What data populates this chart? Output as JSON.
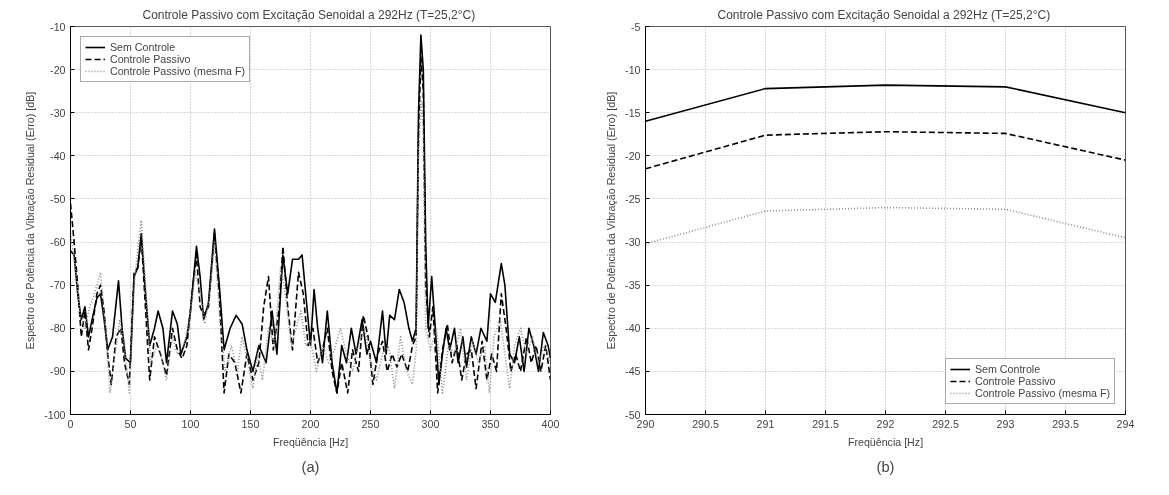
{
  "chart_data": [
    {
      "type": "line",
      "title": "Controle Passivo com Excitação Senoidal a 292Hz  (T=25,2°C)",
      "xlabel": "Freqüência [Hz]",
      "ylabel": "Espectro de Potência da Vibração Residual (Erro) [dB]",
      "xlim": [
        0,
        400
      ],
      "ylim": [
        -100,
        -10
      ],
      "xticks": [
        0,
        50,
        100,
        150,
        200,
        250,
        300,
        350,
        400
      ],
      "yticks": [
        -100,
        -90,
        -80,
        -70,
        -60,
        -50,
        -40,
        -30,
        -20,
        -10
      ],
      "grid": true,
      "legend": "top left",
      "annotations": [
        "(a)"
      ],
      "series": [
        {
          "name": "Sem Controle",
          "color": "#000000",
          "line_style": "solid",
          "x": [
            0,
            3,
            6,
            9,
            12,
            15,
            18,
            22,
            25,
            28,
            31,
            35,
            40,
            43,
            46,
            50,
            53,
            56,
            59,
            62,
            66,
            70,
            73,
            77,
            80,
            85,
            89,
            92,
            97,
            100,
            105,
            108,
            111,
            115,
            120,
            124,
            128,
            133,
            138,
            143,
            147,
            152,
            157,
            163,
            168,
            172,
            177,
            181,
            185,
            190,
            193,
            196,
            200,
            203,
            206,
            210,
            214,
            218,
            222,
            226,
            230,
            234,
            238,
            243,
            247,
            250,
            255,
            260,
            263,
            266,
            270,
            274,
            278,
            282,
            285,
            288,
            290,
            292,
            294,
            296,
            298,
            301,
            304,
            307,
            310,
            313,
            316,
            320,
            323,
            327,
            330,
            334,
            338,
            342,
            347,
            350,
            354,
            359,
            362,
            366,
            370,
            374,
            378,
            382,
            386,
            390,
            394,
            398,
            400
          ],
          "values": [
            -62,
            -63,
            -72,
            -78,
            -75,
            -82,
            -78,
            -73,
            -72,
            -78,
            -85,
            -82,
            -69,
            -80,
            -87,
            -88,
            -68,
            -66,
            -58,
            -70,
            -84,
            -80,
            -76,
            -80,
            -88,
            -76,
            -79,
            -86,
            -82,
            -76,
            -61,
            -68,
            -78,
            -74,
            -57,
            -70,
            -85,
            -80,
            -77,
            -79,
            -85,
            -90,
            -84,
            -88,
            -76,
            -86,
            -63,
            -72,
            -64,
            -64,
            -63,
            -72,
            -84,
            -71,
            -80,
            -88,
            -76,
            -88,
            -95,
            -84,
            -88,
            -80,
            -86,
            -78,
            -86,
            -83,
            -88,
            -76,
            -86,
            -77,
            -78,
            -71,
            -74,
            -80,
            -83,
            -80,
            -30,
            -12,
            -20,
            -60,
            -80,
            -68,
            -80,
            -93,
            -86,
            -80,
            -85,
            -80,
            -88,
            -82,
            -89,
            -82,
            -86,
            -80,
            -83,
            -72,
            -74,
            -65,
            -70,
            -86,
            -88,
            -82,
            -90,
            -80,
            -84,
            -90,
            -81,
            -84,
            -87
          ]
        },
        {
          "name": "Controle Passivo",
          "color": "#000000",
          "line_style": "dashed",
          "x": [
            0,
            3,
            6,
            9,
            12,
            15,
            18,
            22,
            25,
            28,
            31,
            34,
            38,
            42,
            45,
            49,
            53,
            56,
            59,
            62,
            66,
            70,
            75,
            80,
            85,
            89,
            93,
            97,
            102,
            105,
            108,
            111,
            115,
            120,
            124,
            128,
            132,
            137,
            142,
            147,
            152,
            157,
            161,
            165,
            169,
            174,
            177,
            181,
            185,
            190,
            194,
            198,
            202,
            206,
            210,
            214,
            218,
            222,
            226,
            231,
            235,
            240,
            244,
            248,
            252,
            256,
            260,
            264,
            268,
            272,
            276,
            281,
            285,
            288,
            290,
            292,
            294,
            296,
            299,
            302,
            306,
            310,
            314,
            318,
            322,
            326,
            330,
            334,
            338,
            343,
            347,
            351,
            355,
            359,
            363,
            367,
            371,
            375,
            380,
            384,
            388,
            392,
            396,
            400
          ],
          "values": [
            -51,
            -60,
            -70,
            -82,
            -76,
            -85,
            -80,
            -72,
            -70,
            -76,
            -86,
            -93,
            -82,
            -80,
            -88,
            -93,
            -67,
            -66,
            -59,
            -73,
            -92,
            -82,
            -86,
            -91,
            -80,
            -85,
            -87,
            -84,
            -70,
            -63,
            -75,
            -77,
            -75,
            -58,
            -72,
            -95,
            -86,
            -88,
            -95,
            -86,
            -92,
            -88,
            -75,
            -68,
            -85,
            -75,
            -61,
            -75,
            -85,
            -67,
            -72,
            -84,
            -80,
            -88,
            -85,
            -80,
            -90,
            -95,
            -88,
            -95,
            -85,
            -90,
            -77,
            -82,
            -93,
            -86,
            -83,
            -90,
            -86,
            -89,
            -86,
            -90,
            -84,
            -82,
            -35,
            -17,
            -25,
            -70,
            -82,
            -75,
            -95,
            -85,
            -79,
            -88,
            -84,
            -92,
            -86,
            -85,
            -94,
            -83,
            -92,
            -86,
            -90,
            -72,
            -80,
            -90,
            -86,
            -90,
            -82,
            -88,
            -84,
            -90,
            -84,
            -92
          ]
        },
        {
          "name": "Controle Passivo (mesma F)",
          "color": "#8c8c8c",
          "line_style": "dotted",
          "x": [
            0,
            4,
            8,
            12,
            16,
            20,
            25,
            29,
            33,
            37,
            41,
            45,
            49,
            53,
            56,
            59,
            63,
            67,
            72,
            76,
            80,
            85,
            89,
            94,
            99,
            104,
            108,
            112,
            116,
            120,
            125,
            129,
            134,
            139,
            143,
            148,
            152,
            156,
            160,
            165,
            170,
            175,
            179,
            184,
            188,
            192,
            196,
            200,
            205,
            210,
            215,
            220,
            225,
            230,
            235,
            240,
            245,
            250,
            255,
            260,
            265,
            270,
            275,
            280,
            285,
            288,
            290,
            292,
            294,
            296,
            300,
            305,
            310,
            315,
            320,
            325,
            330,
            335,
            340,
            345,
            349,
            353,
            358,
            362,
            366,
            370,
            375,
            380,
            385,
            390,
            395,
            400
          ],
          "values": [
            -58,
            -66,
            -77,
            -80,
            -75,
            -72,
            -67,
            -80,
            -95,
            -86,
            -78,
            -84,
            -95,
            -70,
            -62,
            -55,
            -72,
            -88,
            -84,
            -87,
            -92,
            -82,
            -86,
            -84,
            -79,
            -67,
            -72,
            -79,
            -72,
            -60,
            -80,
            -90,
            -84,
            -90,
            -82,
            -88,
            -94,
            -86,
            -92,
            -80,
            -84,
            -66,
            -72,
            -84,
            -80,
            -76,
            -84,
            -83,
            -90,
            -84,
            -88,
            -85,
            -80,
            -86,
            -90,
            -84,
            -80,
            -88,
            -92,
            -86,
            -84,
            -94,
            -82,
            -90,
            -93,
            -85,
            -40,
            -27,
            -35,
            -80,
            -85,
            -80,
            -95,
            -84,
            -86,
            -80,
            -92,
            -83,
            -88,
            -84,
            -95,
            -82,
            -78,
            -86,
            -94,
            -84,
            -80,
            -86,
            -82,
            -88,
            -84,
            -88
          ]
        }
      ]
    },
    {
      "type": "line",
      "title": "Controle Passivo com Excitação Senoidal a 292Hz  (T=25,2°C)",
      "xlabel": "Freqüência [Hz]",
      "ylabel": "Espectro de Potência da Vibração Residual (Erro) [dB]",
      "xlim": [
        290,
        294
      ],
      "ylim": [
        -50,
        -5
      ],
      "xticks": [
        290,
        290.5,
        291,
        291.5,
        292,
        292.5,
        293,
        293.5,
        294
      ],
      "yticks": [
        -50,
        -45,
        -40,
        -35,
        -30,
        -25,
        -20,
        -15,
        -10,
        -5
      ],
      "grid": true,
      "legend": "bottom right",
      "annotations": [
        "(b)"
      ],
      "x": [
        290,
        291,
        292,
        293,
        294
      ],
      "series": [
        {
          "name": "Sem Controle",
          "color": "#000000",
          "line_style": "solid",
          "values": [
            -16,
            -12.2,
            -11.8,
            -12,
            -15
          ]
        },
        {
          "name": "Controle Passivo",
          "color": "#000000",
          "line_style": "dashed",
          "values": [
            -21.5,
            -17.6,
            -17.2,
            -17.4,
            -20.5
          ]
        },
        {
          "name": "Controle Passivo (mesma F)",
          "color": "#8c8c8c",
          "line_style": "dotted",
          "values": [
            -30.2,
            -26.4,
            -26,
            -26.2,
            -29.5
          ]
        }
      ]
    }
  ]
}
